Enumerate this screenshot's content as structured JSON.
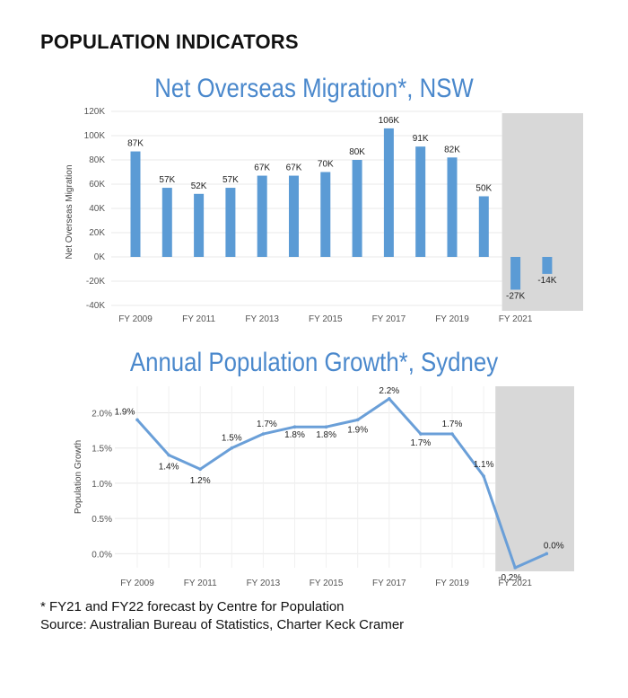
{
  "page": {
    "heading": "POPULATION INDICATORS",
    "footnote": "* FY21 and FY22 forecast by Centre for Population",
    "source": "Source: Australian Bureau of Statistics, Charter Keck Cramer"
  },
  "colors": {
    "bar": "#5b9bd5",
    "line": "#6a9fd8",
    "title": "#4a88cc",
    "forecast_shade": "#d8d8d8",
    "grid": "#e8e8e8"
  },
  "chart_data": [
    {
      "type": "bar",
      "title": "Net Overseas Migration*, NSW",
      "ylabel": "Net Overseas Migration",
      "categories": [
        "FY 2009",
        "FY 2010",
        "FY 2011",
        "FY 2012",
        "FY 2013",
        "FY 2014",
        "FY 2015",
        "FY 2016",
        "FY 2017",
        "FY 2018",
        "FY 2019",
        "FY 2020",
        "FY 2021",
        "FY 2022"
      ],
      "x_tick_labels": [
        "FY 2009",
        "FY 2011",
        "FY 2013",
        "FY 2015",
        "FY 2017",
        "FY 2019",
        "FY 2021"
      ],
      "values": [
        87000,
        57000,
        52000,
        57000,
        67000,
        67000,
        70000,
        80000,
        106000,
        91000,
        82000,
        50000,
        -27000,
        -14000
      ],
      "data_labels": [
        "87K",
        "57K",
        "52K",
        "57K",
        "67K",
        "67K",
        "70K",
        "80K",
        "106K",
        "91K",
        "82K",
        "50K",
        "-27K",
        "-14K"
      ],
      "ylim": [
        -40000,
        120000
      ],
      "y_ticks": [
        120000,
        100000,
        80000,
        60000,
        40000,
        20000,
        0,
        -20000,
        -40000
      ],
      "y_tick_labels": [
        "120K",
        "100K",
        "80K",
        "60K",
        "40K",
        "20K",
        "0K",
        "-20K",
        "-40K"
      ],
      "forecast_categories": [
        "FY 2021",
        "FY 2022"
      ],
      "grid": true
    },
    {
      "type": "line",
      "title": "Annual Population Growth*, Sydney",
      "ylabel": "Population Growth",
      "categories": [
        "FY 2009",
        "FY 2010",
        "FY 2011",
        "FY 2012",
        "FY 2013",
        "FY 2014",
        "FY 2015",
        "FY 2016",
        "FY 2017",
        "FY 2018",
        "FY 2019",
        "FY 2020",
        "FY 2021",
        "FY 2022"
      ],
      "x_tick_labels": [
        "FY 2009",
        "FY 2011",
        "FY 2013",
        "FY 2015",
        "FY 2017",
        "FY 2019",
        "FY 2021"
      ],
      "values": [
        1.9,
        1.4,
        1.2,
        1.5,
        1.7,
        1.8,
        1.8,
        1.9,
        2.2,
        1.7,
        1.7,
        1.1,
        -0.2,
        0.0
      ],
      "data_labels": [
        "1.9%",
        "1.4%",
        "1.2%",
        "1.5%",
        "1.7%",
        "1.8%",
        "1.8%",
        "1.9%",
        "2.2%",
        "1.7%",
        "1.7%",
        "1.1%",
        "-0.2%",
        "0.0%"
      ],
      "ylim": [
        -0.2,
        2.3
      ],
      "y_ticks": [
        2.0,
        1.5,
        1.0,
        0.5,
        0.0
      ],
      "y_tick_labels": [
        "2.0%",
        "1.5%",
        "1.0%",
        "0.5%",
        "0.0%"
      ],
      "forecast_categories": [
        "FY 2021",
        "FY 2022"
      ],
      "grid": true
    }
  ]
}
